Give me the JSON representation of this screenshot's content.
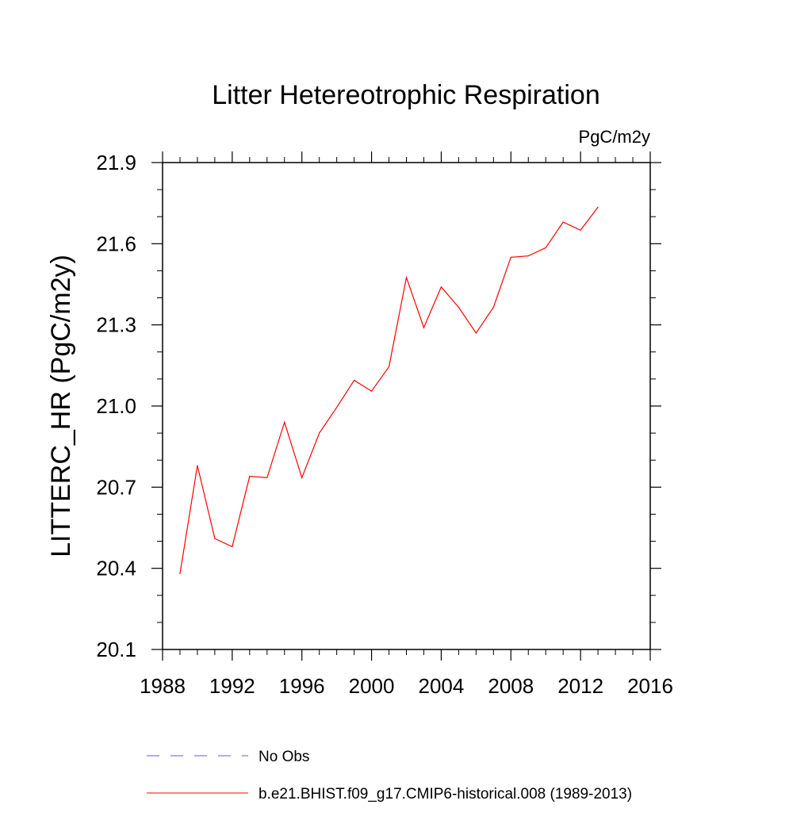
{
  "chart_data": {
    "type": "line",
    "title": "Litter Hetereotrophic Respiration",
    "units": "PgC/m2y",
    "xlabel": "",
    "ylabel": "LITTERC_HR  (PgC/m2y)",
    "xlim": [
      1988,
      2016
    ],
    "ylim": [
      20.1,
      21.9
    ],
    "x_ticks": [
      1988,
      1992,
      1996,
      2000,
      2004,
      2008,
      2012,
      2016
    ],
    "y_ticks": [
      "20.1",
      "20.4",
      "20.7",
      "21.0",
      "21.3",
      "21.6",
      "21.9"
    ],
    "y_minor_step": 0.1,
    "x_minor_step": 1,
    "grid": false,
    "legend_position": "bottom",
    "series": [
      {
        "name": "b.e21.BHIST.f09_g17.CMIP6-historical.008 (1989-2013)",
        "color": "#ff0000",
        "dash": "solid",
        "x": [
          1989,
          1990,
          1991,
          1992,
          1993,
          1994,
          1995,
          1996,
          1997,
          1998,
          1999,
          2000,
          2001,
          2002,
          2003,
          2004,
          2005,
          2006,
          2007,
          2008,
          2009,
          2010,
          2011,
          2012,
          2013
        ],
        "values": [
          20.38,
          20.78,
          20.51,
          20.48,
          20.74,
          20.735,
          20.94,
          20.735,
          20.9,
          20.995,
          21.095,
          21.055,
          21.145,
          21.475,
          21.29,
          21.44,
          21.365,
          21.27,
          21.365,
          21.55,
          21.555,
          21.585,
          21.68,
          21.65,
          21.735
        ]
      }
    ],
    "legend": [
      {
        "label": "No Obs",
        "color": "#6a5acd",
        "dash": "dashed"
      },
      {
        "label": "b.e21.BHIST.f09_g17.CMIP6-historical.008 (1989-2013)",
        "color": "#ff0000",
        "dash": "solid"
      }
    ]
  }
}
